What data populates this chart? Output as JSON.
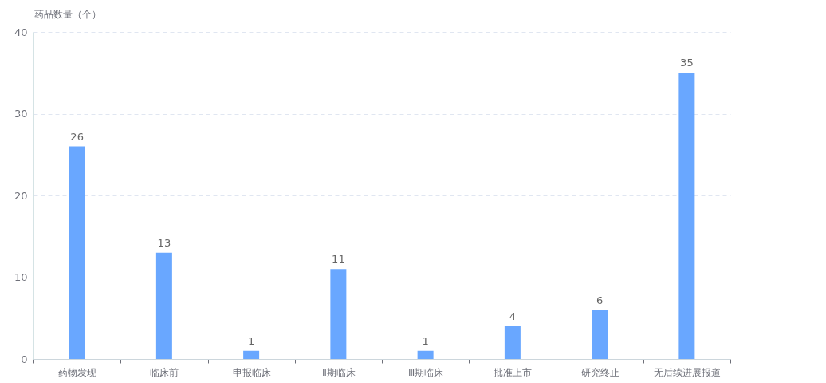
{
  "chart_data": {
    "type": "bar",
    "ylabel": "药品数量（个）",
    "categories": [
      "药物发现",
      "临床前",
      "申报临床",
      "Ⅱ期临床",
      "Ⅲ期临床",
      "批准上市",
      "研究终止",
      "无后续进展报道"
    ],
    "values": [
      26,
      13,
      1,
      11,
      1,
      4,
      6,
      35
    ],
    "color": "#69a7ff",
    "ylim": [
      0,
      40
    ],
    "yticks": [
      0,
      10,
      20,
      30,
      40
    ],
    "grid": "y",
    "data_labels": true
  }
}
